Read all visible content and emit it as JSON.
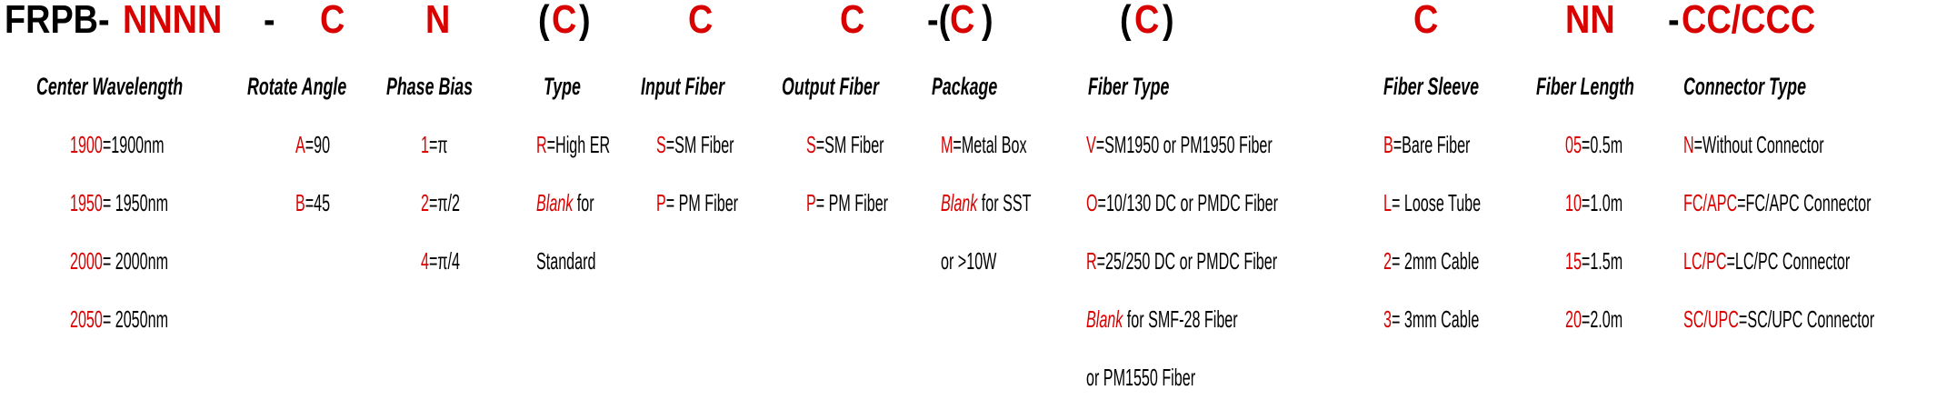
{
  "colors": {
    "accent": "#d90000",
    "text": "#000000"
  },
  "part_code": [
    {
      "text": "FRPB-",
      "red": false
    },
    {
      "text": "NNNN",
      "red": true
    },
    {
      "text": "-",
      "red": false
    },
    {
      "text": "C",
      "red": true
    },
    {
      "text": "N",
      "red": true
    },
    {
      "text": "(",
      "red": false
    },
    {
      "text": "C",
      "red": true
    },
    {
      "text": ")",
      "red": false
    },
    {
      "text": "C",
      "red": true
    },
    {
      "text": "C",
      "red": true
    },
    {
      "text": "-(",
      "red": false
    },
    {
      "text": "C",
      "red": true
    },
    {
      "text": ")",
      "red": false
    },
    {
      "text": "(",
      "red": false
    },
    {
      "text": "C",
      "red": true
    },
    {
      "text": ")",
      "red": false
    },
    {
      "text": "C",
      "red": true
    },
    {
      "text": "NN",
      "red": true
    },
    {
      "text": "-",
      "red": false
    },
    {
      "text": "CC/CCC",
      "red": true
    }
  ],
  "columns": [
    {
      "header": "Center Wavelength",
      "entries": [
        [
          {
            "t": "1900",
            "red": true
          },
          {
            "t": "=1900nm"
          }
        ],
        [
          {
            "t": "1950",
            "red": true
          },
          {
            "t": "= 1950nm"
          }
        ],
        [
          {
            "t": "2000",
            "red": true
          },
          {
            "t": "= 2000nm"
          }
        ],
        [
          {
            "t": "2050",
            "red": true
          },
          {
            "t": "= 2050nm"
          }
        ]
      ]
    },
    {
      "header": "Rotate Angle",
      "entries": [
        [
          {
            "t": "A",
            "red": true
          },
          {
            "t": "=90"
          }
        ],
        [
          {
            "t": "B",
            "red": true
          },
          {
            "t": "=45"
          }
        ]
      ]
    },
    {
      "header": "Phase Bias",
      "entries": [
        [
          {
            "t": "1",
            "red": true
          },
          {
            "t": "=π"
          }
        ],
        [
          {
            "t": "2",
            "red": true
          },
          {
            "t": "=π/2"
          }
        ],
        [
          {
            "t": "4",
            "red": true
          },
          {
            "t": "=π/4"
          }
        ]
      ]
    },
    {
      "header": "Type",
      "entries": [
        [
          {
            "t": "R",
            "red": true
          },
          {
            "t": "=High ER"
          }
        ],
        [
          {
            "t": "Blank",
            "red": true,
            "italic": true
          },
          {
            "t": " for"
          }
        ],
        [
          {
            "t": "Standard"
          }
        ]
      ]
    },
    {
      "header": "Input Fiber",
      "entries": [
        [
          {
            "t": "S",
            "red": true
          },
          {
            "t": "=SM Fiber"
          }
        ],
        [
          {
            "t": "P",
            "red": true
          },
          {
            "t": "= PM Fiber"
          }
        ]
      ]
    },
    {
      "header": "Output Fiber",
      "entries": [
        [
          {
            "t": "S",
            "red": true
          },
          {
            "t": "=SM Fiber"
          }
        ],
        [
          {
            "t": "P",
            "red": true
          },
          {
            "t": "= PM Fiber"
          }
        ]
      ]
    },
    {
      "header": "Package",
      "entries": [
        [
          {
            "t": "M",
            "red": true
          },
          {
            "t": "=Metal Box"
          }
        ],
        [
          {
            "t": "Blank",
            "red": true,
            "italic": true
          },
          {
            "t": " for SST"
          }
        ],
        [
          {
            "t": "or >10W"
          }
        ]
      ]
    },
    {
      "header": "Fiber Type",
      "entries": [
        [
          {
            "t": "V",
            "red": true
          },
          {
            "t": "=SM1950 or PM1950 Fiber"
          }
        ],
        [
          {
            "t": "O",
            "red": true
          },
          {
            "t": "=10/130 DC or PMDC Fiber"
          }
        ],
        [
          {
            "t": "R",
            "red": true
          },
          {
            "t": "=25/250 DC or PMDC Fiber"
          }
        ],
        [
          {
            "t": "Blank",
            "red": true,
            "italic": true
          },
          {
            "t": " for SMF-28 Fiber"
          }
        ],
        [
          {
            "t": "or PM1550 Fiber"
          }
        ]
      ]
    },
    {
      "header": "Fiber Sleeve",
      "entries": [
        [
          {
            "t": "B",
            "red": true
          },
          {
            "t": "=Bare Fiber"
          }
        ],
        [
          {
            "t": "L",
            "red": true
          },
          {
            "t": "= Loose Tube"
          }
        ],
        [
          {
            "t": "2",
            "red": true
          },
          {
            "t": "= 2mm Cable"
          }
        ],
        [
          {
            "t": "3",
            "red": true
          },
          {
            "t": "= 3mm Cable"
          }
        ]
      ]
    },
    {
      "header": "Fiber Length",
      "entries": [
        [
          {
            "t": "05",
            "red": true
          },
          {
            "t": "=0.5m"
          }
        ],
        [
          {
            "t": "10",
            "red": true
          },
          {
            "t": "=1.0m"
          }
        ],
        [
          {
            "t": "15",
            "red": true
          },
          {
            "t": "=1.5m"
          }
        ],
        [
          {
            "t": "20",
            "red": true
          },
          {
            "t": "=2.0m"
          }
        ]
      ]
    },
    {
      "header": "Connector Type",
      "entries": [
        [
          {
            "t": "N",
            "red": true
          },
          {
            "t": "=Without Connector"
          }
        ],
        [
          {
            "t": "FC/APC",
            "red": true
          },
          {
            "t": "=FC/APC Connector"
          }
        ],
        [
          {
            "t": "LC/PC",
            "red": true
          },
          {
            "t": "=LC/PC Connector"
          }
        ],
        [
          {
            "t": "SC/UPC",
            "red": true
          },
          {
            "t": "=SC/UPC Connector"
          }
        ]
      ]
    }
  ]
}
